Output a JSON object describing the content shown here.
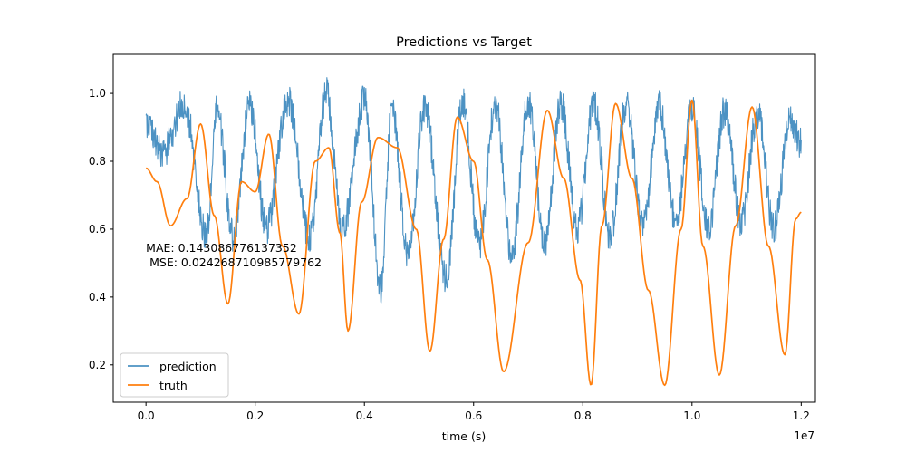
{
  "chart_data": {
    "type": "line",
    "title": "Predictions vs Target",
    "xlabel": "time (s)",
    "ylabel": "",
    "x_offset_label": "1e7",
    "xlim": [
      -0.06,
      1.226
    ],
    "ylim": [
      0.09,
      1.115
    ],
    "x_ticks": [
      0.0,
      0.2,
      0.4,
      0.6,
      0.8,
      1.0,
      1.2
    ],
    "x_tick_labels": [
      "0.0",
      "0.2",
      "0.4",
      "0.6",
      "0.8",
      "1.0",
      "1.2"
    ],
    "y_ticks": [
      0.2,
      0.4,
      0.6,
      0.8,
      1.0
    ],
    "y_tick_labels": [
      "0.2",
      "0.4",
      "0.6",
      "0.8",
      "1.0"
    ],
    "grid": false,
    "legend": {
      "position": "lower-left"
    },
    "annotation": {
      "lines": [
        "MAE: 0.143086776137352",
        " MSE: 0.024268710985779762"
      ],
      "x": 0.0,
      "y": 0.49
    },
    "series": [
      {
        "name": "prediction",
        "color": "#1f77b4",
        "alpha": 0.8,
        "noise": 0.07,
        "x": [
          0.0,
          0.03,
          0.07,
          0.11,
          0.13,
          0.16,
          0.19,
          0.22,
          0.26,
          0.3,
          0.33,
          0.36,
          0.4,
          0.43,
          0.45,
          0.48,
          0.51,
          0.55,
          0.58,
          0.61,
          0.64,
          0.67,
          0.7,
          0.73,
          0.76,
          0.79,
          0.82,
          0.85,
          0.88,
          0.91,
          0.94,
          0.97,
          1.0,
          1.03,
          1.06,
          1.09,
          1.12,
          1.15,
          1.18,
          1.2
        ],
        "values": [
          0.92,
          0.82,
          0.97,
          0.58,
          0.95,
          0.58,
          0.97,
          0.6,
          0.98,
          0.57,
          1.0,
          0.6,
          0.98,
          0.42,
          0.95,
          0.53,
          0.96,
          0.45,
          0.98,
          0.55,
          0.97,
          0.52,
          0.98,
          0.55,
          0.97,
          0.6,
          0.97,
          0.58,
          0.97,
          0.6,
          0.96,
          0.62,
          0.95,
          0.6,
          0.95,
          0.62,
          0.94,
          0.6,
          0.93,
          0.85
        ]
      },
      {
        "name": "truth",
        "color": "#ff7f0e",
        "x": [
          0.0,
          0.02,
          0.045,
          0.075,
          0.1,
          0.125,
          0.15,
          0.175,
          0.2,
          0.225,
          0.25,
          0.28,
          0.31,
          0.335,
          0.355,
          0.37,
          0.395,
          0.425,
          0.46,
          0.495,
          0.52,
          0.545,
          0.57,
          0.6,
          0.625,
          0.655,
          0.7,
          0.735,
          0.765,
          0.795,
          0.815,
          0.835,
          0.86,
          0.89,
          0.92,
          0.95,
          0.98,
          1.0,
          1.02,
          1.05,
          1.08,
          1.11,
          1.14,
          1.17,
          1.19,
          1.2
        ],
        "values": [
          0.78,
          0.74,
          0.61,
          0.69,
          0.91,
          0.64,
          0.38,
          0.74,
          0.71,
          0.88,
          0.55,
          0.35,
          0.8,
          0.84,
          0.59,
          0.3,
          0.68,
          0.87,
          0.84,
          0.6,
          0.24,
          0.57,
          0.93,
          0.8,
          0.51,
          0.18,
          0.56,
          0.95,
          0.75,
          0.45,
          0.14,
          0.61,
          0.97,
          0.75,
          0.42,
          0.14,
          0.6,
          0.98,
          0.55,
          0.17,
          0.61,
          0.96,
          0.55,
          0.23,
          0.63,
          0.65
        ]
      }
    ]
  }
}
